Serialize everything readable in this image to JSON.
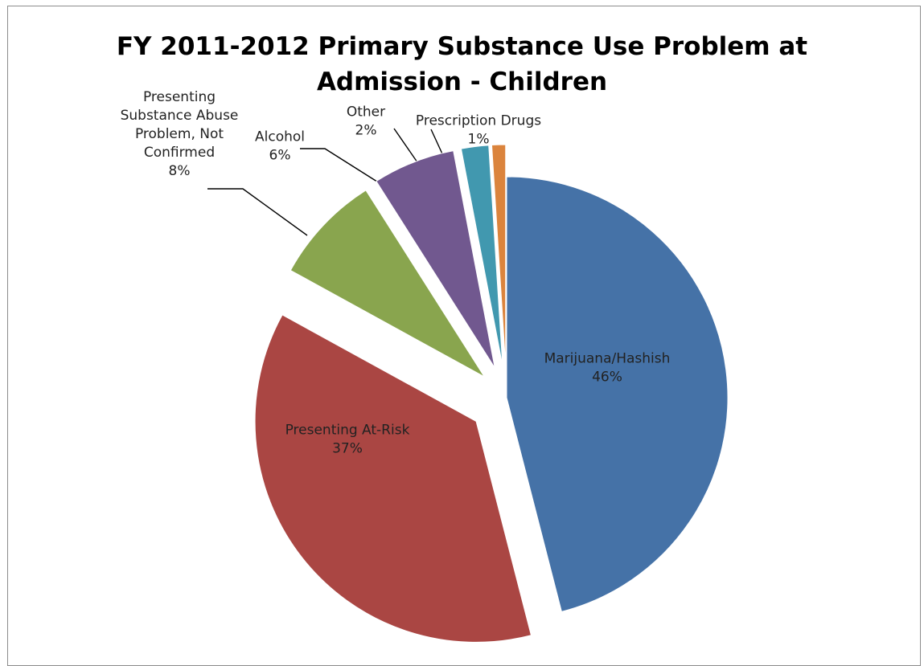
{
  "chart_data": {
    "type": "pie",
    "title_lines": [
      "FY 2011-2012 Primary Substance Use Problem at",
      "Admission - Children"
    ],
    "slices": [
      {
        "name": "Marijuana/Hashish",
        "value": 46,
        "label_lines": [
          "Marijuana/Hashish",
          "46%"
        ],
        "color": "#4572A7",
        "label_inside": true
      },
      {
        "name": "Presenting At-Risk",
        "value": 37,
        "label_lines": [
          "Presenting At-Risk",
          "37%"
        ],
        "color": "#AA4643",
        "label_inside": true
      },
      {
        "name": "Presenting Substance Abuse Problem, Not Confirmed",
        "value": 8,
        "label_lines": [
          "Presenting",
          "Substance Abuse",
          "Problem, Not",
          "Confirmed",
          "8%"
        ],
        "color": "#89A54E",
        "label_inside": false
      },
      {
        "name": "Alcohol",
        "value": 6,
        "label_lines": [
          "Alcohol",
          "6%"
        ],
        "color": "#71588F",
        "label_inside": false
      },
      {
        "name": "Other",
        "value": 2,
        "label_lines": [
          "Other",
          "2%"
        ],
        "color": "#4198AF",
        "label_inside": false
      },
      {
        "name": "Prescription Drugs",
        "value": 1,
        "label_lines": [
          "Prescription Drugs",
          "1%"
        ],
        "color": "#DB843D",
        "label_inside": false
      }
    ]
  }
}
